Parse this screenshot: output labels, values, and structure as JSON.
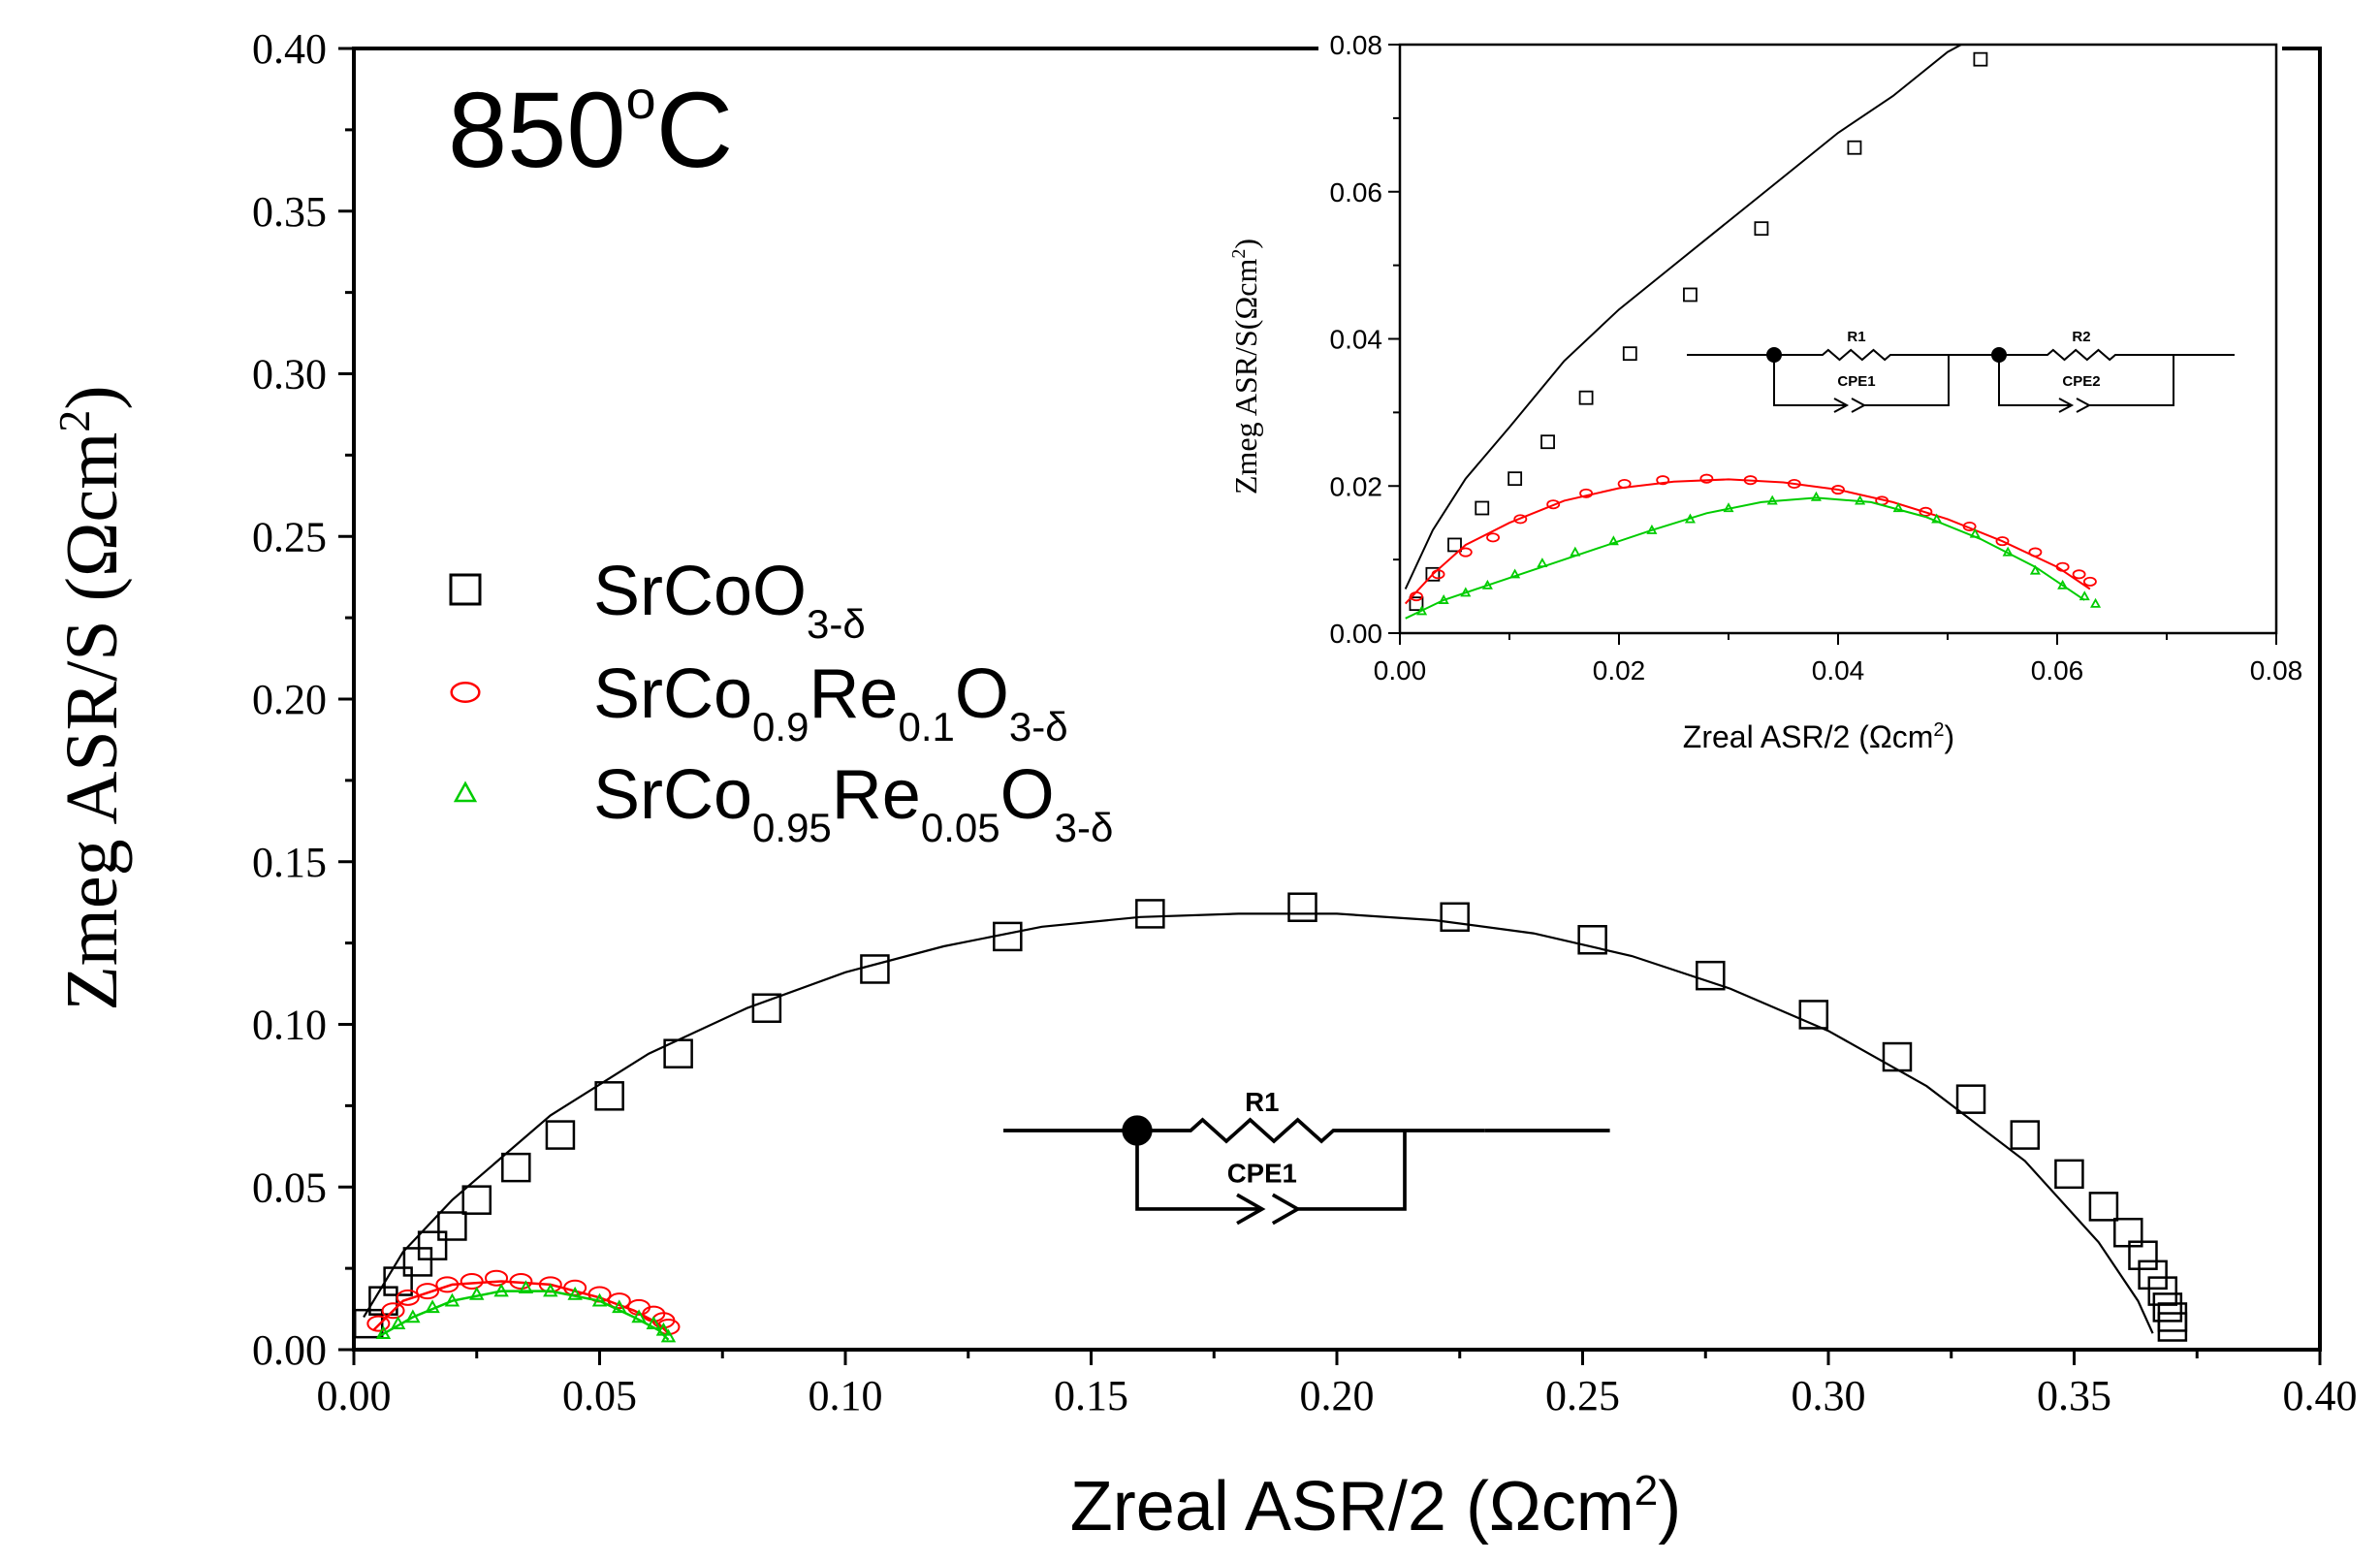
{
  "chart_data": [
    {
      "type": "scatter",
      "id": "main",
      "title": "850°C",
      "title_parts": {
        "value": "850",
        "degree": "o",
        "unit": "C"
      },
      "xlabel": "Zreal ASR/2 (Ωcm²)",
      "xlabel_parts": {
        "text": "Zreal ASR/2 (Ωcm",
        "sup": "2",
        "close": ")"
      },
      "ylabel": "Zmeg ASR/S (Ωcm²)",
      "ylabel_parts": {
        "text": "Zmeg ASR/S (Ωcm",
        "sup": "2",
        "close": ")"
      },
      "xlim": [
        0,
        0.4
      ],
      "ylim": [
        0,
        0.4
      ],
      "xticks": [
        "0.00",
        "0.05",
        "0.10",
        "0.15",
        "0.20",
        "0.25",
        "0.30",
        "0.35",
        "0.40"
      ],
      "yticks": [
        "0.00",
        "0.05",
        "0.10",
        "0.15",
        "0.20",
        "0.25",
        "0.30",
        "0.35",
        "0.40"
      ],
      "legend_position": "upper-left",
      "series": [
        {
          "name": "SrCoO3-δ",
          "name_parts": [
            {
              "text": "SrCoO",
              "sub": false
            },
            {
              "text": "3-δ",
              "sub": true
            }
          ],
          "marker": "square",
          "color": "#000000",
          "points": [
            [
              0.003,
              0.008
            ],
            [
              0.006,
              0.015
            ],
            [
              0.009,
              0.021
            ],
            [
              0.013,
              0.027
            ],
            [
              0.016,
              0.032
            ],
            [
              0.02,
              0.038
            ],
            [
              0.025,
              0.046
            ],
            [
              0.033,
              0.056
            ],
            [
              0.042,
              0.066
            ],
            [
              0.052,
              0.078
            ],
            [
              0.066,
              0.091
            ],
            [
              0.084,
              0.105
            ],
            [
              0.106,
              0.117
            ],
            [
              0.133,
              0.127
            ],
            [
              0.162,
              0.134
            ],
            [
              0.193,
              0.136
            ],
            [
              0.224,
              0.133
            ],
            [
              0.252,
              0.126
            ],
            [
              0.276,
              0.115
            ],
            [
              0.297,
              0.103
            ],
            [
              0.314,
              0.09
            ],
            [
              0.329,
              0.077
            ],
            [
              0.34,
              0.066
            ],
            [
              0.349,
              0.054
            ],
            [
              0.356,
              0.044
            ],
            [
              0.361,
              0.036
            ],
            [
              0.364,
              0.029
            ],
            [
              0.366,
              0.023
            ],
            [
              0.368,
              0.018
            ],
            [
              0.369,
              0.013
            ],
            [
              0.37,
              0.01
            ],
            [
              0.37,
              0.007
            ]
          ],
          "fit": [
            [
              0.002,
              0.01
            ],
            [
              0.01,
              0.03
            ],
            [
              0.02,
              0.046
            ],
            [
              0.04,
              0.072
            ],
            [
              0.06,
              0.091
            ],
            [
              0.08,
              0.105
            ],
            [
              0.1,
              0.116
            ],
            [
              0.12,
              0.124
            ],
            [
              0.14,
              0.13
            ],
            [
              0.16,
              0.133
            ],
            [
              0.18,
              0.134
            ],
            [
              0.2,
              0.134
            ],
            [
              0.22,
              0.132
            ],
            [
              0.24,
              0.128
            ],
            [
              0.26,
              0.121
            ],
            [
              0.28,
              0.111
            ],
            [
              0.3,
              0.098
            ],
            [
              0.32,
              0.081
            ],
            [
              0.34,
              0.058
            ],
            [
              0.355,
              0.033
            ],
            [
              0.363,
              0.015
            ],
            [
              0.366,
              0.005
            ]
          ]
        },
        {
          "name": "SrCo0.9Re0.1O3-δ",
          "name_parts": [
            {
              "text": "SrCo",
              "sub": false
            },
            {
              "text": "0.9",
              "sub": true
            },
            {
              "text": "Re",
              "sub": false
            },
            {
              "text": "0.1",
              "sub": true
            },
            {
              "text": "O",
              "sub": false
            },
            {
              "text": "3-δ",
              "sub": true
            }
          ],
          "marker": "circle",
          "color": "#ff0000",
          "points": [
            [
              0.005,
              0.008
            ],
            [
              0.008,
              0.012
            ],
            [
              0.011,
              0.016
            ],
            [
              0.015,
              0.018
            ],
            [
              0.019,
              0.02
            ],
            [
              0.024,
              0.021
            ],
            [
              0.029,
              0.022
            ],
            [
              0.034,
              0.021
            ],
            [
              0.04,
              0.02
            ],
            [
              0.045,
              0.019
            ],
            [
              0.05,
              0.017
            ],
            [
              0.054,
              0.015
            ],
            [
              0.058,
              0.013
            ],
            [
              0.061,
              0.011
            ],
            [
              0.063,
              0.009
            ],
            [
              0.064,
              0.007
            ]
          ],
          "fit": [
            [
              0.004,
              0.006
            ],
            [
              0.01,
              0.015
            ],
            [
              0.02,
              0.02
            ],
            [
              0.03,
              0.021
            ],
            [
              0.04,
              0.02
            ],
            [
              0.05,
              0.016
            ],
            [
              0.057,
              0.012
            ],
            [
              0.062,
              0.008
            ],
            [
              0.064,
              0.005
            ]
          ]
        },
        {
          "name": "SrCo0.95Re0.05O3-δ",
          "name_parts": [
            {
              "text": "SrCo",
              "sub": false
            },
            {
              "text": "0.95",
              "sub": true
            },
            {
              "text": "Re",
              "sub": false
            },
            {
              "text": "0.05",
              "sub": true
            },
            {
              "text": "O",
              "sub": false
            },
            {
              "text": "3-δ",
              "sub": true
            }
          ],
          "marker": "triangle",
          "color": "#00cc00",
          "points": [
            [
              0.006,
              0.005
            ],
            [
              0.009,
              0.008
            ],
            [
              0.012,
              0.01
            ],
            [
              0.016,
              0.013
            ],
            [
              0.02,
              0.015
            ],
            [
              0.025,
              0.017
            ],
            [
              0.03,
              0.018
            ],
            [
              0.035,
              0.019
            ],
            [
              0.04,
              0.018
            ],
            [
              0.045,
              0.017
            ],
            [
              0.05,
              0.015
            ],
            [
              0.054,
              0.013
            ],
            [
              0.058,
              0.01
            ],
            [
              0.061,
              0.008
            ],
            [
              0.063,
              0.006
            ],
            [
              0.064,
              0.004
            ]
          ],
          "fit": [
            [
              0.005,
              0.004
            ],
            [
              0.012,
              0.01
            ],
            [
              0.02,
              0.015
            ],
            [
              0.03,
              0.018
            ],
            [
              0.04,
              0.018
            ],
            [
              0.05,
              0.015
            ],
            [
              0.057,
              0.01
            ],
            [
              0.062,
              0.006
            ],
            [
              0.064,
              0.003
            ]
          ]
        }
      ],
      "circuit": {
        "labels": [
          "R1",
          "CPE1"
        ]
      }
    },
    {
      "type": "scatter",
      "id": "inset",
      "xlabel": "Zreal ASR/2 (Ωcm²)",
      "xlabel_parts": {
        "text": "Zreal ASR/2 (Ωcm",
        "sup": "2",
        "close": ")"
      },
      "ylabel": "Zmeg ASR/S(Ωcm²)",
      "ylabel_parts": {
        "text": "Zmeg ASR/S(Ωcm",
        "sup": "2",
        "close": ")"
      },
      "xlim": [
        0,
        0.08
      ],
      "ylim": [
        0,
        0.08
      ],
      "xticks": [
        "0.00",
        "0.02",
        "0.04",
        "0.06",
        "0.08"
      ],
      "yticks": [
        "0.00",
        "0.02",
        "0.04",
        "0.06",
        "0.08"
      ],
      "series": [
        {
          "name": "SrCoO3-δ",
          "marker": "square",
          "color": "#000000",
          "points": [
            [
              0.0015,
              0.004
            ],
            [
              0.003,
              0.008
            ],
            [
              0.005,
              0.012
            ],
            [
              0.0075,
              0.017
            ],
            [
              0.0105,
              0.021
            ],
            [
              0.0135,
              0.026
            ],
            [
              0.017,
              0.032
            ],
            [
              0.021,
              0.038
            ],
            [
              0.0265,
              0.046
            ],
            [
              0.033,
              0.055
            ],
            [
              0.0415,
              0.066
            ],
            [
              0.053,
              0.078
            ]
          ],
          "fit": [
            [
              0.0005,
              0.006
            ],
            [
              0.003,
              0.014
            ],
            [
              0.006,
              0.021
            ],
            [
              0.01,
              0.028
            ],
            [
              0.015,
              0.037
            ],
            [
              0.02,
              0.044
            ],
            [
              0.025,
              0.05
            ],
            [
              0.03,
              0.056
            ],
            [
              0.035,
              0.062
            ],
            [
              0.04,
              0.068
            ],
            [
              0.045,
              0.073
            ],
            [
              0.05,
              0.079
            ],
            [
              0.0525,
              0.081
            ]
          ]
        },
        {
          "name": "SrCo0.9Re0.1O3-δ",
          "marker": "circle",
          "color": "#ff0000",
          "points": [
            [
              0.0015,
              0.005
            ],
            [
              0.0035,
              0.008
            ],
            [
              0.006,
              0.011
            ],
            [
              0.0085,
              0.013
            ],
            [
              0.011,
              0.0155
            ],
            [
              0.014,
              0.0175
            ],
            [
              0.017,
              0.019
            ],
            [
              0.0205,
              0.0203
            ],
            [
              0.024,
              0.0208
            ],
            [
              0.028,
              0.021
            ],
            [
              0.032,
              0.0208
            ],
            [
              0.036,
              0.0203
            ],
            [
              0.04,
              0.0195
            ],
            [
              0.044,
              0.018
            ],
            [
              0.048,
              0.0165
            ],
            [
              0.052,
              0.0145
            ],
            [
              0.055,
              0.0125
            ],
            [
              0.058,
              0.011
            ],
            [
              0.0605,
              0.009
            ],
            [
              0.062,
              0.008
            ],
            [
              0.063,
              0.007
            ]
          ],
          "fit": [
            [
              0.0005,
              0.004
            ],
            [
              0.003,
              0.008
            ],
            [
              0.006,
              0.012
            ],
            [
              0.01,
              0.015
            ],
            [
              0.015,
              0.018
            ],
            [
              0.02,
              0.0197
            ],
            [
              0.025,
              0.0206
            ],
            [
              0.03,
              0.0209
            ],
            [
              0.035,
              0.0205
            ],
            [
              0.04,
              0.0195
            ],
            [
              0.045,
              0.0178
            ],
            [
              0.05,
              0.0155
            ],
            [
              0.055,
              0.0125
            ],
            [
              0.06,
              0.009
            ],
            [
              0.063,
              0.006
            ]
          ]
        },
        {
          "name": "SrCo0.95Re0.05O3-δ",
          "marker": "triangle",
          "color": "#00cc00",
          "points": [
            [
              0.002,
              0.003
            ],
            [
              0.004,
              0.0045
            ],
            [
              0.006,
              0.0055
            ],
            [
              0.008,
              0.0065
            ],
            [
              0.0105,
              0.008
            ],
            [
              0.013,
              0.0095
            ],
            [
              0.016,
              0.011
            ],
            [
              0.0195,
              0.0125
            ],
            [
              0.023,
              0.014
            ],
            [
              0.0265,
              0.0155
            ],
            [
              0.03,
              0.017
            ],
            [
              0.034,
              0.018
            ],
            [
              0.038,
              0.0185
            ],
            [
              0.042,
              0.018
            ],
            [
              0.0455,
              0.017
            ],
            [
              0.049,
              0.0155
            ],
            [
              0.0525,
              0.0135
            ],
            [
              0.0555,
              0.011
            ],
            [
              0.058,
              0.0085
            ],
            [
              0.0605,
              0.0065
            ],
            [
              0.0625,
              0.005
            ],
            [
              0.0635,
              0.004
            ]
          ],
          "fit": [
            [
              0.0005,
              0.002
            ],
            [
              0.004,
              0.0045
            ],
            [
              0.008,
              0.0065
            ],
            [
              0.013,
              0.009
            ],
            [
              0.018,
              0.0115
            ],
            [
              0.023,
              0.014
            ],
            [
              0.028,
              0.0163
            ],
            [
              0.033,
              0.0178
            ],
            [
              0.038,
              0.0184
            ],
            [
              0.043,
              0.0178
            ],
            [
              0.048,
              0.0158
            ],
            [
              0.053,
              0.0128
            ],
            [
              0.058,
              0.009
            ],
            [
              0.0625,
              0.0045
            ]
          ]
        }
      ],
      "circuit": {
        "labels": [
          "R1",
          "CPE1",
          "R2",
          "CPE2"
        ]
      }
    }
  ]
}
